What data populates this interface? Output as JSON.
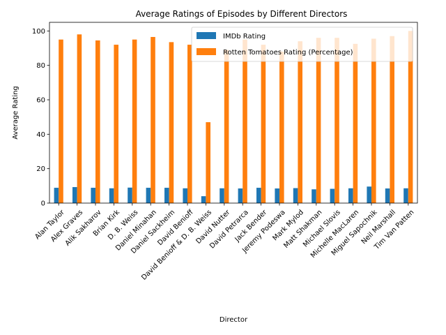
{
  "chart_data": {
    "type": "bar",
    "title": "Average Ratings of Episodes by Different Directors",
    "xlabel": "Director",
    "ylabel": "Average Rating",
    "ylim": [
      0,
      105
    ],
    "yticks": [
      0,
      20,
      40,
      60,
      80,
      100
    ],
    "grid": false,
    "legend_position": "top-right",
    "categories": [
      "Alan Taylor",
      "Alex Graves",
      "Alik Sakharov",
      "Brian Kirk",
      "D. B. Weiss",
      "Daniel Minahan",
      "Daniel Sackheim",
      "David Benioff",
      "David Benioff & D. B. Weiss",
      "David Nutter",
      "David Petrarca",
      "Jack Bender",
      "Jeremy Podeswa",
      "Mark Mylod",
      "Matt Shakman",
      "Michael Slovis",
      "Michelle MacLaren",
      "Miguel Sapochnik",
      "Neil Marshall",
      "Tim Van Patten"
    ],
    "series": [
      {
        "name": "IMDb Rating",
        "color": "#1f77b4",
        "values": [
          8.9,
          9.3,
          8.9,
          8.6,
          9.0,
          8.9,
          8.9,
          8.6,
          4.0,
          8.6,
          8.5,
          8.9,
          8.5,
          8.7,
          8.0,
          8.3,
          8.6,
          9.6,
          8.5,
          8.6
        ]
      },
      {
        "name": "Rotten Tomatoes Rating (Percentage)",
        "color": "#ff7f0e",
        "values": [
          95,
          98,
          94.5,
          92,
          95,
          96.5,
          93.5,
          92,
          47,
          89,
          95,
          92,
          88,
          94,
          96,
          96,
          92.5,
          95.5,
          97,
          100
        ]
      }
    ]
  }
}
